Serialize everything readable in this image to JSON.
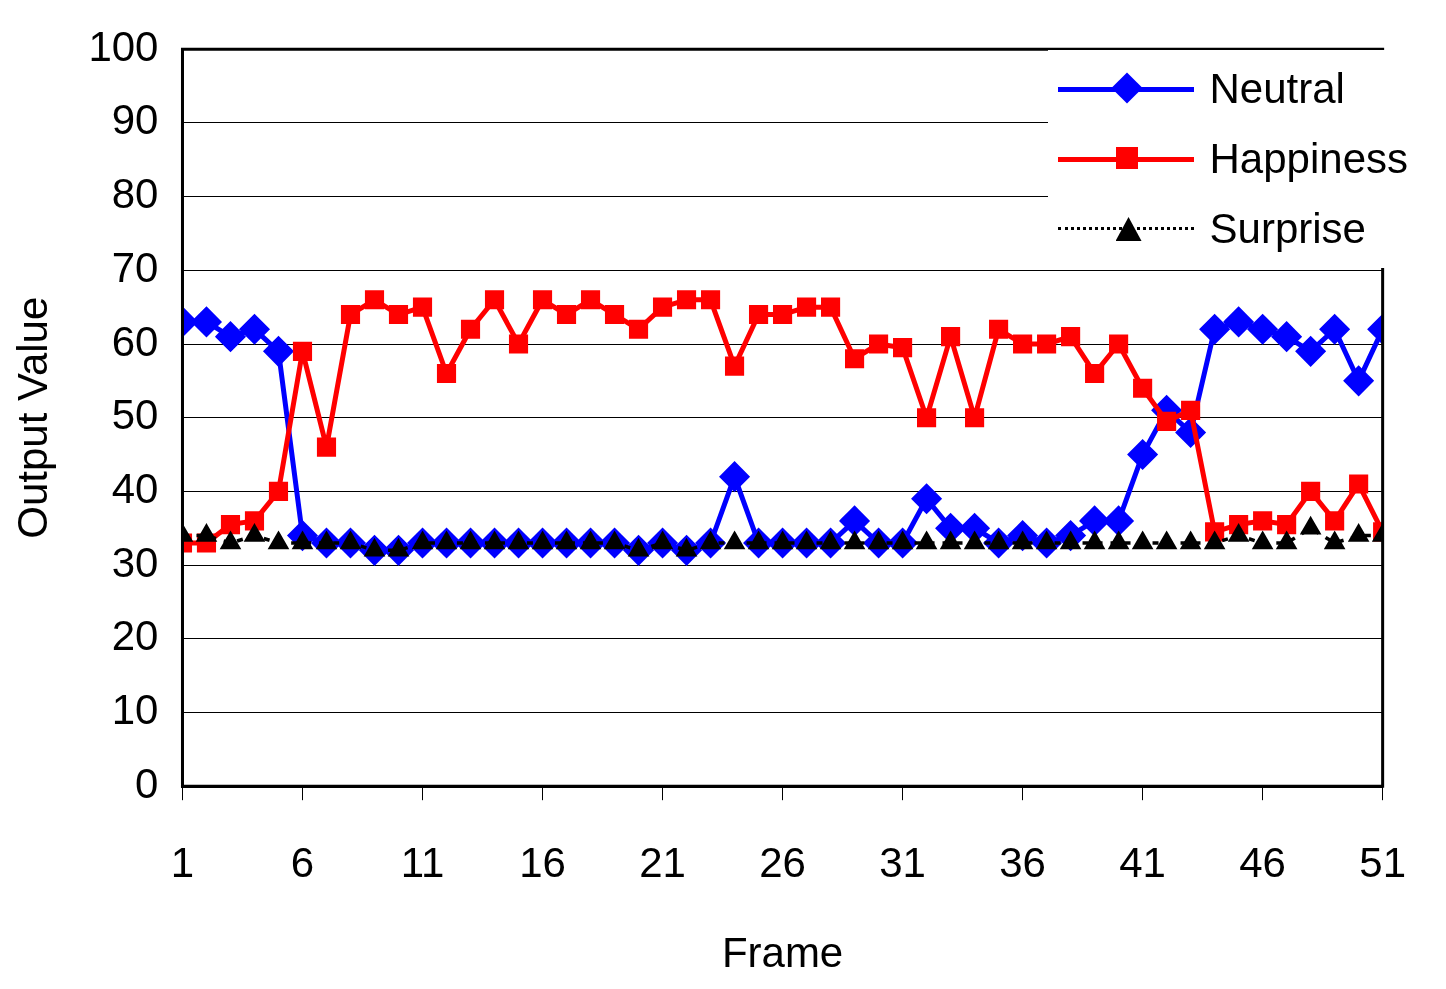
{
  "chart_data": {
    "type": "line",
    "xlabel": "Frame",
    "ylabel": "Output Value",
    "xlim": [
      1,
      51
    ],
    "xticks": [
      1,
      6,
      11,
      16,
      21,
      26,
      31,
      36,
      41,
      46,
      51
    ],
    "ylim": [
      0,
      100
    ],
    "yticks": [
      0,
      10,
      20,
      30,
      40,
      50,
      60,
      70,
      80,
      90,
      100
    ],
    "grid": "y",
    "legend": "top right",
    "x": [
      1,
      2,
      3,
      4,
      5,
      6,
      7,
      8,
      9,
      10,
      11,
      12,
      13,
      14,
      15,
      16,
      17,
      18,
      19,
      20,
      21,
      22,
      23,
      24,
      25,
      26,
      27,
      28,
      29,
      30,
      31,
      32,
      33,
      34,
      35,
      36,
      37,
      38,
      39,
      40,
      41,
      42,
      43,
      44,
      45,
      46,
      47,
      48,
      49,
      50,
      51
    ],
    "series": [
      {
        "name": "Neutral",
        "color": "#0000ff",
        "marker": "diamond",
        "line_style": "solid",
        "values": [
          63,
          63,
          61,
          62,
          59,
          34,
          33,
          33,
          32,
          32,
          33,
          33,
          33,
          33,
          33,
          33,
          33,
          33,
          33,
          32,
          33,
          32,
          33,
          42,
          33,
          33,
          33,
          33,
          36,
          33,
          33,
          39,
          35,
          35,
          33,
          34,
          33,
          34,
          36,
          36,
          45,
          51,
          48,
          62,
          63,
          62,
          61,
          59,
          62,
          55,
          62
        ]
      },
      {
        "name": "Happiness",
        "color": "#ff0000",
        "marker": "square",
        "line_style": "solid",
        "values": [
          33,
          33,
          35.5,
          36,
          40,
          59,
          46,
          64,
          66,
          64,
          65,
          56,
          62,
          66,
          60,
          66,
          64,
          66,
          64,
          62,
          65,
          66,
          66,
          57,
          64,
          64,
          65,
          65,
          58,
          60,
          59.5,
          50,
          61,
          50,
          62,
          60,
          60,
          61,
          56,
          60,
          54,
          49.5,
          51,
          34.5,
          35.5,
          36,
          35.5,
          40,
          36,
          41,
          34.5
        ]
      },
      {
        "name": "Surprise",
        "color": "#000000",
        "marker": "triangle",
        "line_style": "dotted",
        "values": [
          34,
          34,
          33,
          34,
          33,
          33,
          33,
          33,
          32,
          32,
          33,
          33,
          33,
          33,
          33,
          33,
          33,
          33,
          33,
          32,
          33,
          32,
          33,
          33,
          33,
          33,
          33,
          33,
          33,
          33,
          33,
          33,
          33,
          33,
          33,
          33,
          33,
          33,
          33,
          33,
          33,
          33,
          33,
          33,
          34,
          33,
          33,
          35,
          33,
          34,
          34
        ]
      }
    ]
  }
}
